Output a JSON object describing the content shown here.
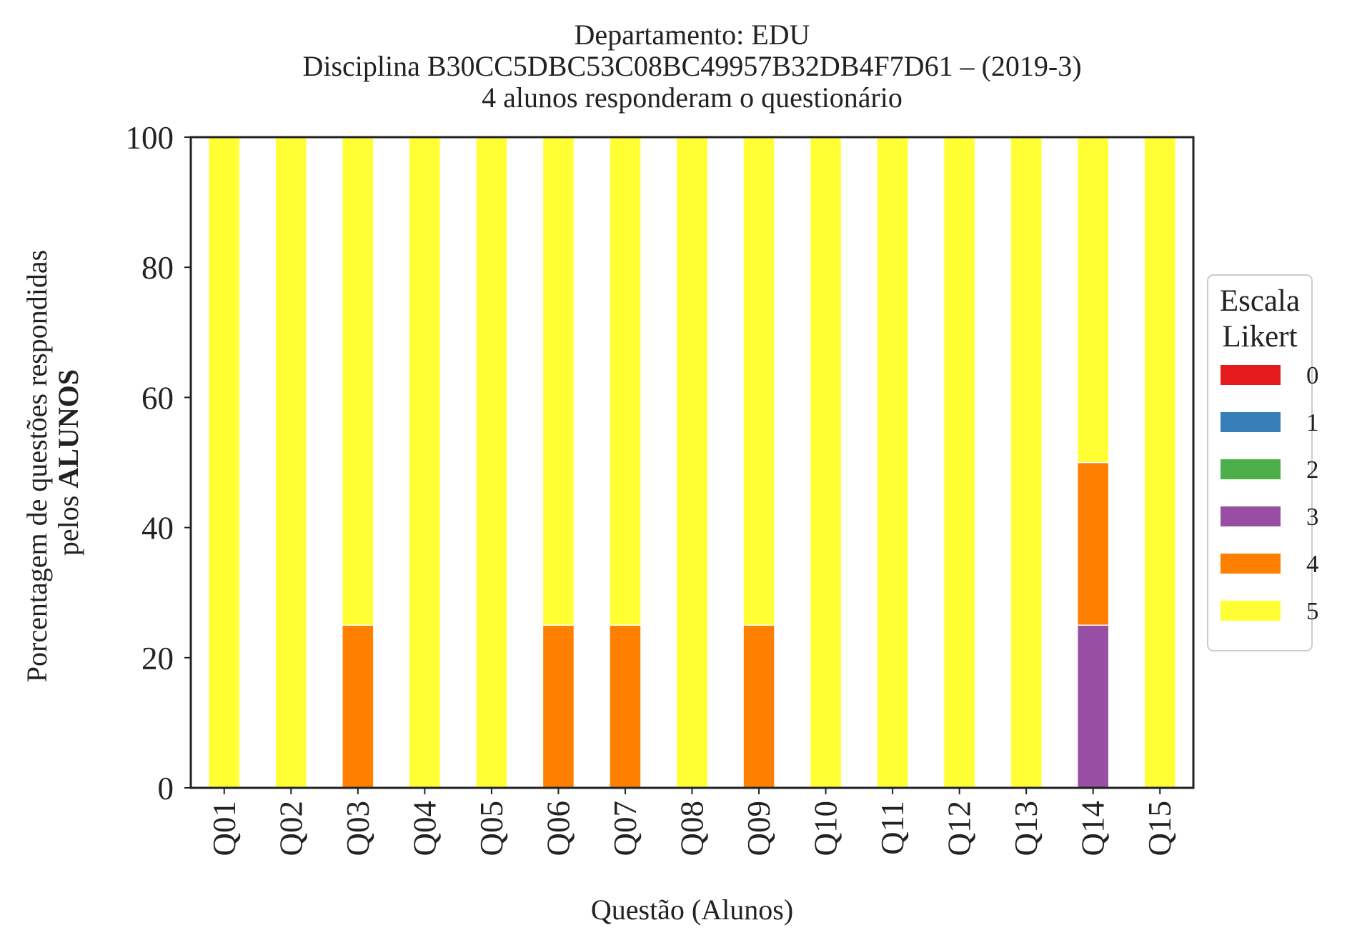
{
  "chart_data": {
    "type": "bar",
    "stacked": true,
    "title_lines": [
      "Departamento: EDU",
      "Disciplina B30CC5DBC53C08BC49957B32DB4F7D61 – (2019-3)",
      "4 alunos responderam o questionário"
    ],
    "xlabel": "Questão (Alunos)",
    "ylabel_line1": "Porcentagem de questões respondidas",
    "ylabel_line2_prefix": "pelos ",
    "ylabel_line2_bold": "ALUNOS",
    "ylim": [
      0,
      100
    ],
    "yticks": [
      "0",
      "20",
      "40",
      "60",
      "80",
      "100"
    ],
    "categories": [
      "Q01",
      "Q02",
      "Q03",
      "Q04",
      "Q05",
      "Q06",
      "Q07",
      "Q08",
      "Q09",
      "Q10",
      "Q11",
      "Q12",
      "Q13",
      "Q14",
      "Q15"
    ],
    "legend": {
      "title_lines": [
        "Escala",
        "Likert"
      ],
      "placement": "right-center"
    },
    "series": [
      {
        "name": "0",
        "color": "#e41a1c",
        "values": [
          0,
          0,
          0,
          0,
          0,
          0,
          0,
          0,
          0,
          0,
          0,
          0,
          0,
          0,
          0
        ]
      },
      {
        "name": "1",
        "color": "#377eb8",
        "values": [
          0,
          0,
          0,
          0,
          0,
          0,
          0,
          0,
          0,
          0,
          0,
          0,
          0,
          0,
          0
        ]
      },
      {
        "name": "2",
        "color": "#4daf4a",
        "values": [
          0,
          0,
          0,
          0,
          0,
          0,
          0,
          0,
          0,
          0,
          0,
          0,
          0,
          0,
          0
        ]
      },
      {
        "name": "3",
        "color": "#984ea3",
        "values": [
          0,
          0,
          0,
          0,
          0,
          0,
          0,
          0,
          0,
          0,
          0,
          0,
          0,
          25,
          0
        ]
      },
      {
        "name": "4",
        "color": "#ff7f00",
        "values": [
          0,
          0,
          25,
          0,
          0,
          25,
          25,
          0,
          25,
          0,
          0,
          0,
          0,
          25,
          0
        ]
      },
      {
        "name": "5",
        "color": "#ffff33",
        "values": [
          100,
          100,
          75,
          100,
          100,
          75,
          75,
          100,
          75,
          100,
          100,
          100,
          100,
          50,
          100
        ]
      }
    ]
  }
}
